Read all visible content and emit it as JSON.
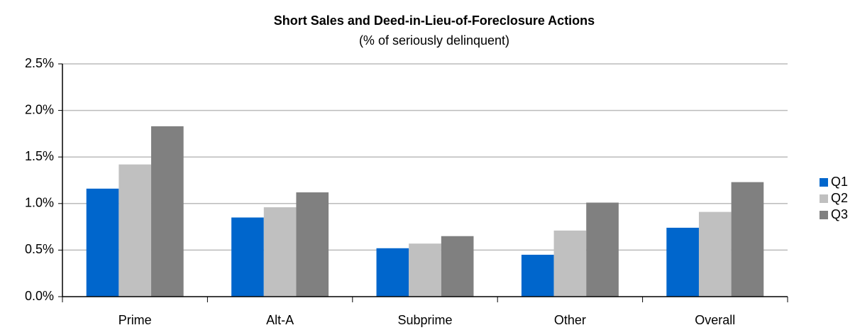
{
  "chart_data": {
    "type": "bar",
    "title": "Short Sales and Deed-in-Lieu-of-Foreclosure Actions",
    "subtitle": "(% of seriously delinquent)",
    "categories": [
      "Prime",
      "Alt-A",
      "Subprime",
      "Other",
      "Overall"
    ],
    "series": [
      {
        "name": "Q1",
        "color": "#0066cc",
        "values": [
          1.16,
          0.85,
          0.52,
          0.45,
          0.74
        ]
      },
      {
        "name": "Q2",
        "color": "#c0c0c0",
        "values": [
          1.42,
          0.96,
          0.57,
          0.71,
          0.91
        ]
      },
      {
        "name": "Q3",
        "color": "#808080",
        "values": [
          1.83,
          1.12,
          0.65,
          1.01,
          1.23
        ]
      }
    ],
    "ylim": [
      0,
      2.5
    ],
    "yticks": [
      {
        "value": 0,
        "label": "0.0%"
      },
      {
        "value": 0.5,
        "label": "0.5%"
      },
      {
        "value": 1,
        "label": "1.0%"
      },
      {
        "value": 1.5,
        "label": "1.5%"
      },
      {
        "value": 2,
        "label": "2.0%"
      },
      {
        "value": 2.5,
        "label": "2.5%"
      }
    ],
    "grid": true,
    "legend": "right"
  }
}
